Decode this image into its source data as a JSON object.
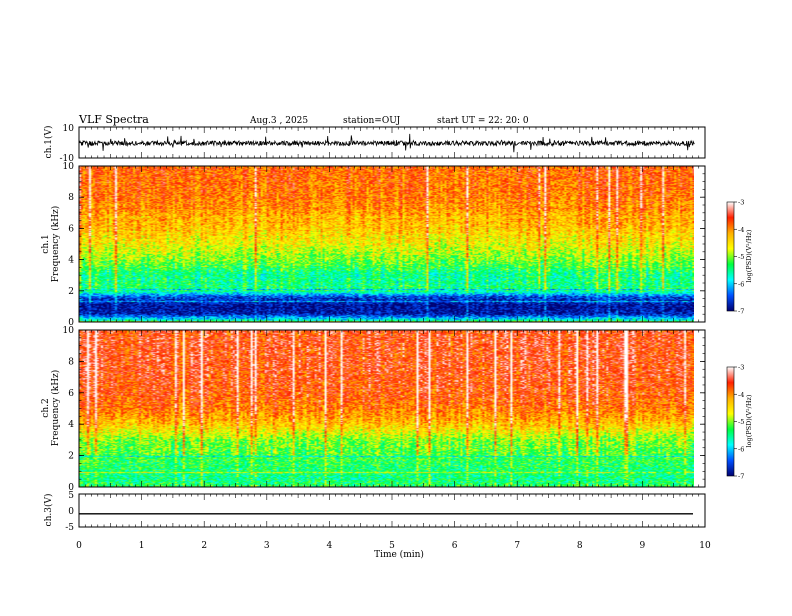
{
  "header": {
    "title": "VLF Spectra",
    "date": "Aug.3 , 2025",
    "station": "station=OUJ",
    "start": "start UT = 22: 20: 0"
  },
  "colorbar": {
    "label": "log(PSD)(V²/Hz)",
    "ticks": [
      "-3",
      "-4",
      "-5",
      "-6",
      "-7"
    ],
    "colors": [
      "#ffffff",
      "#ff2000",
      "#ffb000",
      "#ffff00",
      "#00ff40",
      "#00ffff",
      "#0050ff",
      "#000070"
    ]
  },
  "chart_data": [
    {
      "type": "line",
      "id": "ch1-waveform",
      "ylabel": "ch.1(V)",
      "ylim": [
        -10,
        10
      ],
      "yticks": [
        "10",
        "-10"
      ],
      "xlim": [
        0,
        10
      ],
      "baseline": -0.5,
      "noise_amplitude_v": 3,
      "note_values": "dense noisy waveform around 0 V"
    },
    {
      "type": "heatmap",
      "id": "ch1-spectrogram",
      "ylabel": "Frequency (kHz)",
      "ylabel2": "ch.1",
      "ylim": [
        0,
        10
      ],
      "yticks": [
        "0",
        "2",
        "4",
        "6",
        "8",
        "10"
      ],
      "xlim": [
        0,
        9.83
      ],
      "profile_freq_khz": [
        0,
        0.5,
        1.0,
        1.6,
        2.0,
        3.0,
        4.0,
        5.0,
        6.0,
        8.0,
        10.0
      ],
      "profile_log_psd": [
        -5.5,
        -6.8,
        -6.9,
        -6.5,
        -5.4,
        -5.5,
        -5.0,
        -4.6,
        -4.3,
        -3.9,
        -3.8
      ]
    },
    {
      "type": "heatmap",
      "id": "ch2-spectrogram",
      "ylabel": "Frequency (kHz)",
      "ylabel2": "ch.2",
      "ylim": [
        0,
        10
      ],
      "yticks": [
        "0",
        "2",
        "4",
        "6",
        "8",
        "10"
      ],
      "xlim": [
        0,
        9.83
      ],
      "profile_freq_khz": [
        0,
        0.5,
        1.0,
        1.6,
        2.0,
        3.0,
        4.0,
        5.0,
        6.0,
        8.0,
        10.0
      ],
      "profile_log_psd": [
        -5.3,
        -5.5,
        -5.4,
        -5.3,
        -5.2,
        -5.0,
        -4.3,
        -3.9,
        -3.7,
        -3.6,
        -3.6
      ]
    },
    {
      "type": "line",
      "id": "ch3-waveform",
      "ylabel": "ch.3(V)",
      "ylim": [
        -5,
        5
      ],
      "yticks": [
        "5",
        "0",
        "-5"
      ],
      "xlim": [
        0,
        10
      ],
      "baseline": -1,
      "xlabel": "Time (min)",
      "xticks": [
        "0",
        "1",
        "2",
        "3",
        "4",
        "5",
        "6",
        "7",
        "8",
        "9",
        "10"
      ]
    }
  ]
}
